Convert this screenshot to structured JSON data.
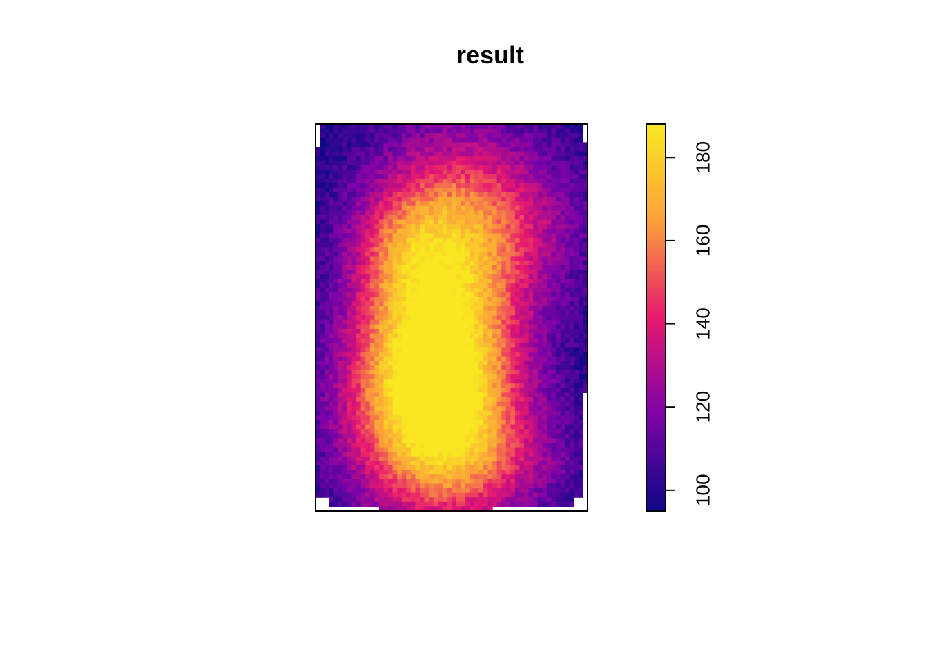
{
  "chart_data": {
    "type": "heatmap",
    "title": "result",
    "xlabel": "",
    "ylabel": "",
    "grid": false,
    "grid_cols": 60,
    "grid_rows": 85,
    "value_range": [
      95,
      188
    ],
    "colorbar": {
      "ticks": [
        100,
        120,
        140,
        160,
        180
      ],
      "tick_labels": [
        "100",
        "120",
        "140",
        "160",
        "180"
      ],
      "min": 95,
      "max": 188
    },
    "colormap": [
      "#0d0887",
      "#7e03a8",
      "#e6186f",
      "#fb9f3a",
      "#f9e721"
    ],
    "surface_components": [
      {
        "cx": 0.43,
        "cy": 0.72,
        "sx": 0.22,
        "sy": 0.2,
        "amp": 85
      },
      {
        "cx": 0.45,
        "cy": 0.45,
        "sx": 0.2,
        "sy": 0.26,
        "amp": 48
      },
      {
        "cx": 0.62,
        "cy": 0.25,
        "sx": 0.25,
        "sy": 0.16,
        "amp": 40
      },
      {
        "cx": 0.3,
        "cy": 0.32,
        "sx": 0.12,
        "sy": 0.1,
        "amp": 18
      },
      {
        "cx": 0.68,
        "cy": 0.88,
        "sx": 0.22,
        "sy": 0.1,
        "amp": 18
      }
    ],
    "base_value": 97,
    "missing_regions": [
      {
        "col_start": 0,
        "col_end": 0,
        "row_start": 0,
        "row_end": 4
      },
      {
        "col_start": 59,
        "col_end": 59,
        "row_start": 0,
        "row_end": 3
      },
      {
        "col_start": 59,
        "col_end": 59,
        "row_start": 59,
        "row_end": 84
      },
      {
        "col_start": 0,
        "col_end": 2,
        "row_start": 82,
        "row_end": 84
      },
      {
        "col_start": 0,
        "col_end": 13,
        "row_start": 84,
        "row_end": 84
      },
      {
        "col_start": 39,
        "col_end": 59,
        "row_start": 84,
        "row_end": 84
      },
      {
        "col_start": 57,
        "col_end": 59,
        "row_start": 82,
        "row_end": 84
      }
    ]
  }
}
